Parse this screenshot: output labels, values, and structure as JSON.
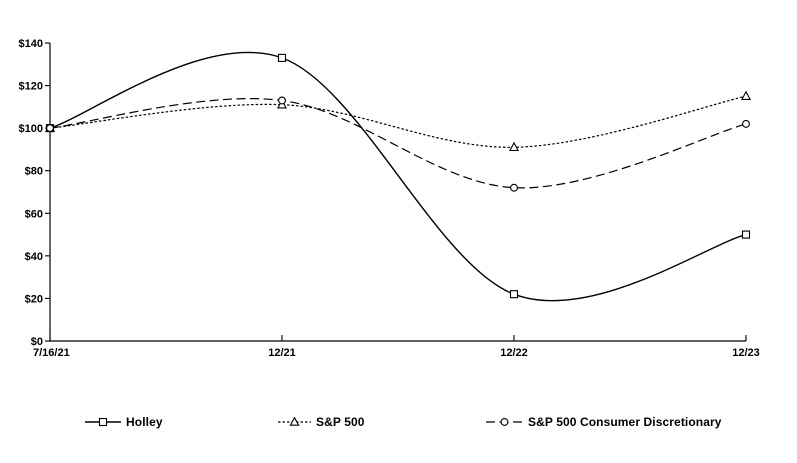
{
  "chart_data": {
    "type": "line",
    "title": "",
    "x_categories": [
      "7/16/21",
      "12/21",
      "12/22",
      "12/23"
    ],
    "y_tick_labels": [
      "$0",
      "$20",
      "$40",
      "$60",
      "$80",
      "$100",
      "$120",
      "$140"
    ],
    "y_tick_values": [
      0,
      20,
      40,
      60,
      80,
      100,
      120,
      140
    ],
    "ylim": [
      0,
      140
    ],
    "grid": false,
    "legend_position": "bottom",
    "axis_color": "#000000",
    "background": "#ffffff",
    "series": [
      {
        "name": "Holley",
        "values": [
          100,
          133,
          22,
          50
        ],
        "line_style": "solid",
        "marker": "square",
        "color": "#000000"
      },
      {
        "name": "S&P 500",
        "values": [
          100,
          111,
          91,
          115
        ],
        "line_style": "dotted",
        "marker": "triangle",
        "color": "#000000"
      },
      {
        "name": "S&P 500 Consumer Discretionary",
        "values": [
          100,
          113,
          72,
          102
        ],
        "line_style": "dashed",
        "marker": "circle",
        "color": "#000000"
      }
    ]
  }
}
